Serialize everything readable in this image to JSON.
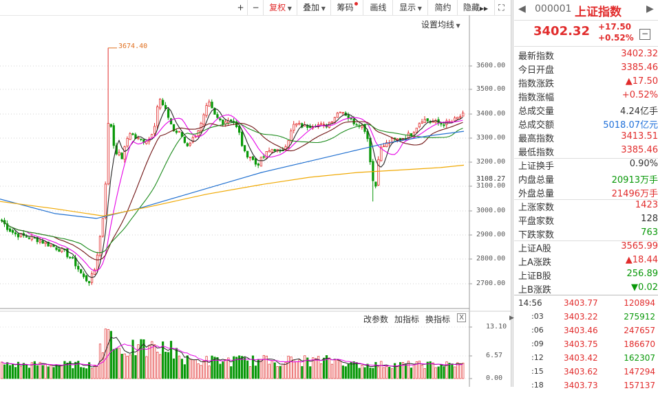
{
  "toolbar": {
    "plus": "+",
    "minus": "−",
    "fuquan": "复权",
    "diejia": "叠加",
    "chouma": "筹码",
    "huaxian": "画线",
    "xianshi": "显示",
    "jianyue": "简约",
    "yincang": "隐藏",
    "more_arrows": "▶▶"
  },
  "chart": {
    "settings_label": "设置均线",
    "peak_label": "3674.40",
    "current_price_tag": "3108.27",
    "y_ticks": [
      "3600.00",
      "3500.00",
      "3400.00",
      "3300.00",
      "3200.00",
      "3100.00",
      "3000.00",
      "2900.00",
      "2800.00",
      "2700.00"
    ],
    "vol_ticks": [
      "13.10",
      "6.57",
      "0.00"
    ],
    "ind_buttons": [
      "改参数",
      "加指标",
      "换指标"
    ],
    "close": "X",
    "colors": {
      "up": "#e12b2b",
      "down": "#089808",
      "ma5": "#222222",
      "ma10": "#e600e6",
      "ma20": "#6e1010",
      "ma30": "#1a8a1a",
      "ma60": "#1f6fd0",
      "ma120": "#f0a800"
    }
  },
  "panel": {
    "code": "000001",
    "name": "上证指数",
    "price": "3402.32",
    "change": "+17.50",
    "change_pct": "+0.52%",
    "stats": [
      {
        "label": "最新指数",
        "value": "3402.32",
        "color": "red"
      },
      {
        "label": "今日开盘",
        "value": "3385.46",
        "color": "red"
      },
      {
        "label": "指数涨跌",
        "value": "▲17.50",
        "color": "red"
      },
      {
        "label": "指数涨幅",
        "value": "+0.52%",
        "color": "red"
      },
      {
        "label": "总成交量",
        "value": "4.24亿手",
        "color": "black"
      },
      {
        "label": "总成交额",
        "value": "5018.07亿元",
        "color": "blue"
      },
      {
        "label": "最高指数",
        "value": "3413.51",
        "color": "red"
      },
      {
        "label": "最低指数",
        "value": "3385.46",
        "color": "red"
      },
      {
        "label": "上证换手",
        "value": "0.90%",
        "color": "black"
      },
      {
        "label": "内盘总量",
        "value": "20913万手",
        "color": "green"
      },
      {
        "label": "外盘总量",
        "value": "21496万手",
        "color": "red"
      },
      {
        "label": "上涨家数",
        "value": "1423",
        "color": "red"
      },
      {
        "label": "平盘家数",
        "value": "128",
        "color": "black"
      },
      {
        "label": "下跌家数",
        "value": "763",
        "color": "green"
      },
      {
        "label": "上证A股",
        "value": "3565.99",
        "color": "red"
      },
      {
        "label": "上A涨跌",
        "value": "▲18.44",
        "color": "red"
      },
      {
        "label": "上证B股",
        "value": "256.89",
        "color": "green"
      },
      {
        "label": "上B涨跌",
        "value": "▼0.02",
        "color": "green"
      }
    ],
    "ticks": [
      {
        "time": "14:56",
        "price": "3403.77",
        "vol": "120894",
        "vcolor": "red"
      },
      {
        "time": ":03",
        "price": "3403.22",
        "vol": "275912",
        "vcolor": "green"
      },
      {
        "time": ":06",
        "price": "3403.46",
        "vol": "247657",
        "vcolor": "red"
      },
      {
        "time": ":09",
        "price": "3403.75",
        "vol": "186670",
        "vcolor": "red"
      },
      {
        "time": ":12",
        "price": "3403.42",
        "vol": "162307",
        "vcolor": "green"
      },
      {
        "time": ":15",
        "price": "3403.62",
        "vol": "147294",
        "vcolor": "red"
      },
      {
        "time": ":18",
        "price": "3403.73",
        "vol": "157137",
        "vcolor": "red"
      }
    ]
  }
}
